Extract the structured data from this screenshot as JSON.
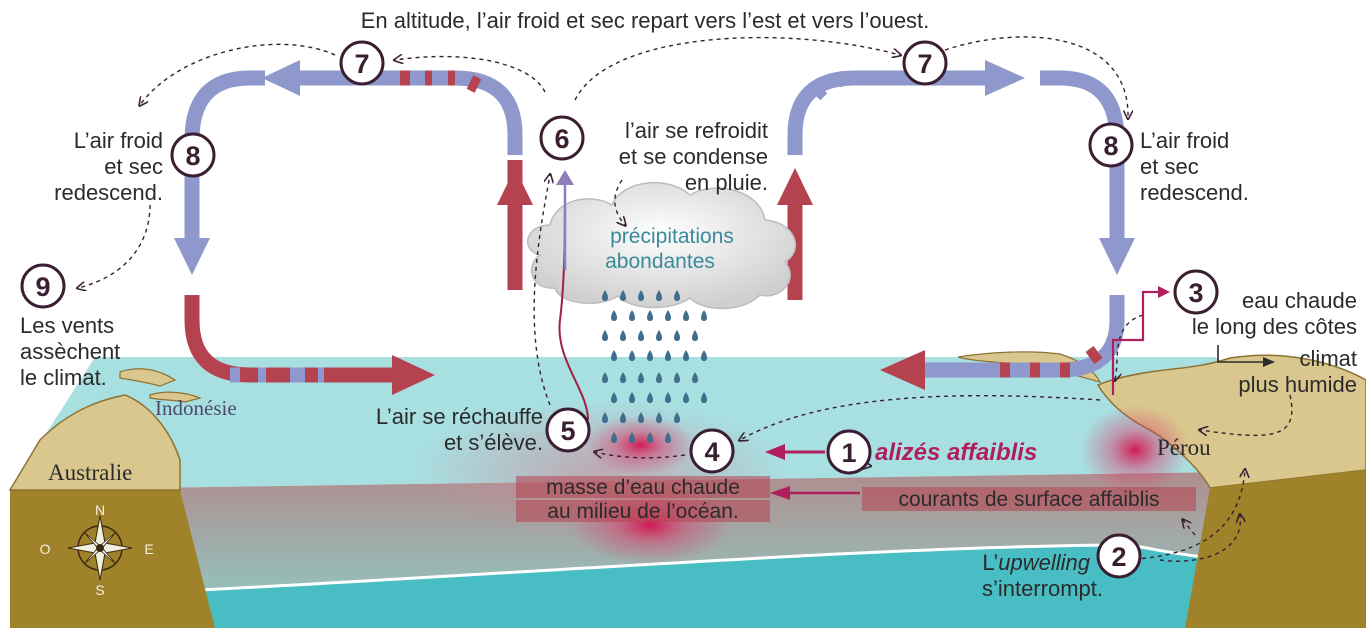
{
  "top_caption": "En altitude, l’air froid et sec repart vers l’est et vers l’ouest.",
  "steps": [
    {
      "num": "1",
      "text": "alizés affaiblis"
    },
    {
      "num": "2",
      "line1_pre": "L’",
      "line1_italic": "upwelling",
      "line2": "s’interrompt."
    },
    {
      "num": "3",
      "line1": "eau chaude",
      "line2": "le long des côtes",
      "line3": "climat",
      "line4": "plus humide"
    },
    {
      "num": "4",
      "line1": "masse d’eau chaude",
      "line2": "au milieu de l’océan."
    },
    {
      "num": "5",
      "line1": "L’air se réchauffe",
      "line2": "et s’élève."
    },
    {
      "num": "6",
      "line1": "l’air se refroidit",
      "line2": "et se condense",
      "line3": "en pluie."
    },
    {
      "num": "7"
    },
    {
      "num": "8",
      "line1": "L’air froid",
      "line2": "et sec",
      "line3": "redescend."
    },
    {
      "num": "9",
      "line1": "Les vents",
      "line2": "assèchent",
      "line3": "le climat."
    }
  ],
  "currents_label": "courants de surface affaiblis",
  "rain_label": {
    "line1": "précipitations",
    "line2": "abondantes"
  },
  "places": {
    "indonesie": "Indonésie",
    "australie": "Australie",
    "perou": "Pérou"
  },
  "compass": {
    "n": "N",
    "s": "S",
    "e": "E",
    "o": "O"
  },
  "colors": {
    "warm": "#b5424f",
    "cold": "#8e98cc",
    "accent": "#b01e5e",
    "ocean": "#a8e0e2",
    "deep": "#49bdc4",
    "land": "#a0822a",
    "circle": "#3a1f33",
    "rain": "#3f6f8c"
  }
}
